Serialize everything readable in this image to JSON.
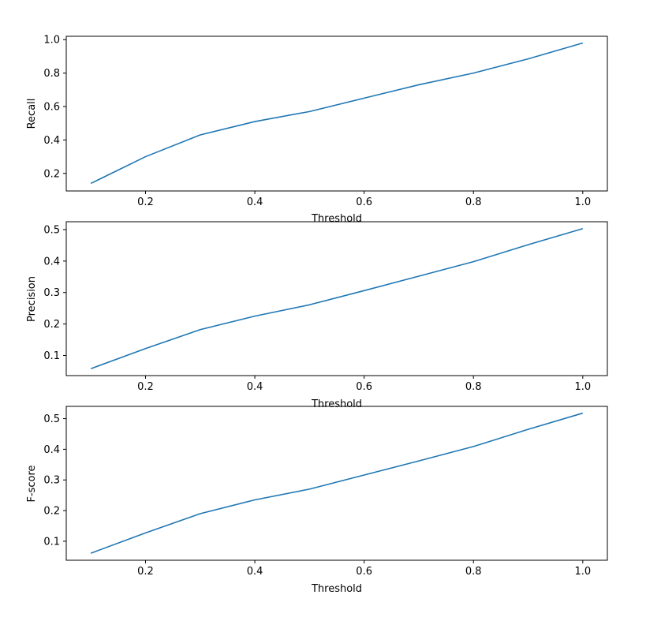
{
  "chart_data": [
    {
      "type": "line",
      "xlabel": "Threshold",
      "ylabel": "Recall",
      "x": [
        0.1,
        0.2,
        0.3,
        0.4,
        0.5,
        0.6,
        0.7,
        0.8,
        0.9,
        1.0
      ],
      "series": [
        {
          "values": [
            0.14,
            0.3,
            0.43,
            0.51,
            0.57,
            0.65,
            0.73,
            0.8,
            0.885,
            0.98
          ],
          "color": "#1f77b4"
        }
      ],
      "xlim": [
        0.055,
        1.045
      ],
      "ylim": [
        0.095,
        1.02
      ],
      "xticks": [
        0.2,
        0.4,
        0.6,
        0.8,
        1.0
      ],
      "xtick_labels": [
        "0.2",
        "0.4",
        "0.6",
        "0.8",
        "1.0"
      ],
      "yticks": [
        0.2,
        0.4,
        0.6,
        0.8,
        1.0
      ],
      "ytick_labels": [
        "0.2",
        "0.4",
        "0.6",
        "0.8",
        "1.0"
      ],
      "grid": false
    },
    {
      "type": "line",
      "xlabel": "Threshold",
      "ylabel": "Precision",
      "x": [
        0.1,
        0.2,
        0.3,
        0.4,
        0.5,
        0.6,
        0.7,
        0.8,
        0.9,
        1.0
      ],
      "series": [
        {
          "values": [
            0.058,
            0.122,
            0.182,
            0.225,
            0.261,
            0.306,
            0.352,
            0.398,
            0.452,
            0.503
          ],
          "color": "#1f77b4"
        }
      ],
      "xlim": [
        0.055,
        1.045
      ],
      "ylim": [
        0.036,
        0.525
      ],
      "xticks": [
        0.2,
        0.4,
        0.6,
        0.8,
        1.0
      ],
      "xtick_labels": [
        "0.2",
        "0.4",
        "0.6",
        "0.8",
        "1.0"
      ],
      "yticks": [
        0.1,
        0.2,
        0.3,
        0.4,
        0.5
      ],
      "ytick_labels": [
        "0.1",
        "0.2",
        "0.3",
        "0.4",
        "0.5"
      ],
      "grid": false
    },
    {
      "type": "line",
      "xlabel": "Threshold",
      "ylabel": "F-score",
      "x": [
        0.1,
        0.2,
        0.3,
        0.4,
        0.5,
        0.6,
        0.7,
        0.8,
        0.9,
        1.0
      ],
      "series": [
        {
          "values": [
            0.061,
            0.127,
            0.19,
            0.235,
            0.27,
            0.316,
            0.362,
            0.409,
            0.465,
            0.518
          ],
          "color": "#1f77b4"
        }
      ],
      "xlim": [
        0.055,
        1.045
      ],
      "ylim": [
        0.038,
        0.54
      ],
      "xticks": [
        0.2,
        0.4,
        0.6,
        0.8,
        1.0
      ],
      "xtick_labels": [
        "0.2",
        "0.4",
        "0.6",
        "0.8",
        "1.0"
      ],
      "yticks": [
        0.1,
        0.2,
        0.3,
        0.4,
        0.5
      ],
      "ytick_labels": [
        "0.1",
        "0.2",
        "0.3",
        "0.4",
        "0.5"
      ],
      "grid": false
    }
  ]
}
